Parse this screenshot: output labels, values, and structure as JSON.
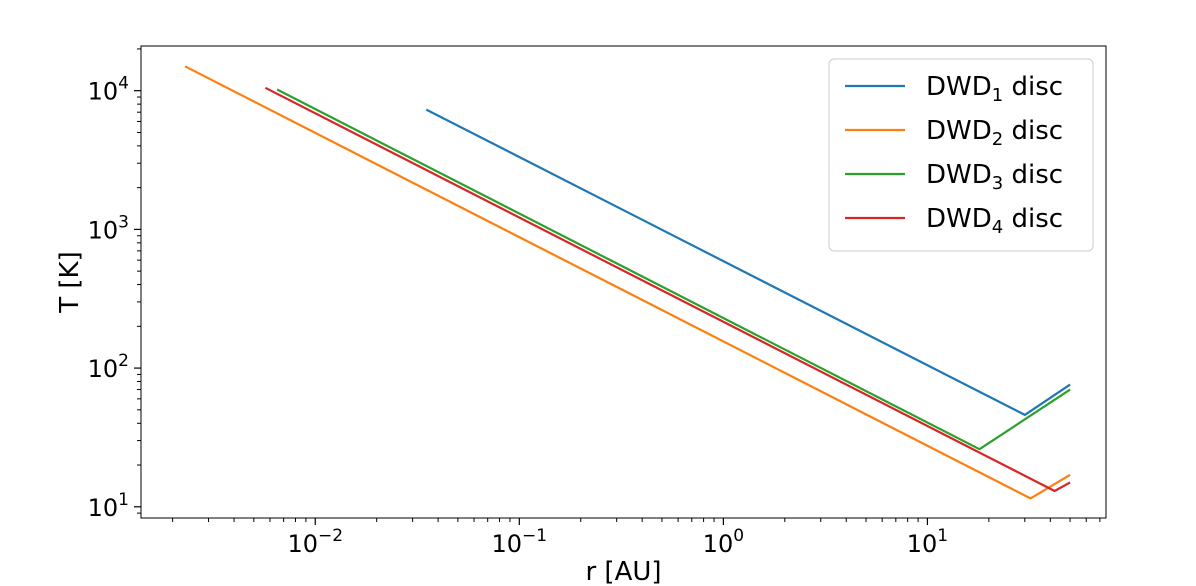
{
  "chart_data": {
    "type": "line",
    "xscale": "log",
    "yscale": "log",
    "xlabel": "r [AU]",
    "ylabel": "T [K]",
    "xlim": [
      0.0014,
      75
    ],
    "ylim": [
      8.3,
      21000
    ],
    "grid": false,
    "legend_position": "top-right",
    "x_ticks": [
      {
        "value": 0.01,
        "mantissa": "10",
        "exponent": "−2"
      },
      {
        "value": 0.1,
        "mantissa": "10",
        "exponent": "−1"
      },
      {
        "value": 1,
        "mantissa": "10",
        "exponent": "0"
      },
      {
        "value": 10,
        "mantissa": "10",
        "exponent": "1"
      }
    ],
    "y_ticks": [
      {
        "value": 10,
        "mantissa": "10",
        "exponent": "1"
      },
      {
        "value": 100,
        "mantissa": "10",
        "exponent": "2"
      },
      {
        "value": 1000,
        "mantissa": "10",
        "exponent": "3"
      },
      {
        "value": 10000,
        "mantissa": "10",
        "exponent": "4"
      }
    ],
    "series": [
      {
        "name": "DWD1 disc",
        "legend_base": "DWD",
        "legend_sub": "1",
        "legend_suffix": " disc",
        "color": "#1f77b4",
        "points": [
          [
            0.035,
            7300
          ],
          [
            30,
            46
          ],
          [
            50,
            76
          ]
        ]
      },
      {
        "name": "DWD2 disc",
        "legend_base": "DWD",
        "legend_sub": "2",
        "legend_suffix": " disc",
        "color": "#ff7f0e",
        "points": [
          [
            0.0023,
            15000
          ],
          [
            32,
            11.5
          ],
          [
            50,
            17
          ]
        ]
      },
      {
        "name": "DWD3 disc",
        "legend_base": "DWD",
        "legend_sub": "3",
        "legend_suffix": " disc",
        "color": "#2ca02c",
        "points": [
          [
            0.0065,
            10200
          ],
          [
            18,
            26
          ],
          [
            50,
            70
          ]
        ]
      },
      {
        "name": "DWD4 disc",
        "legend_base": "DWD",
        "legend_sub": "4",
        "legend_suffix": " disc",
        "color": "#d62728",
        "points": [
          [
            0.0057,
            10500
          ],
          [
            42,
            13
          ],
          [
            50,
            15
          ]
        ]
      }
    ]
  }
}
